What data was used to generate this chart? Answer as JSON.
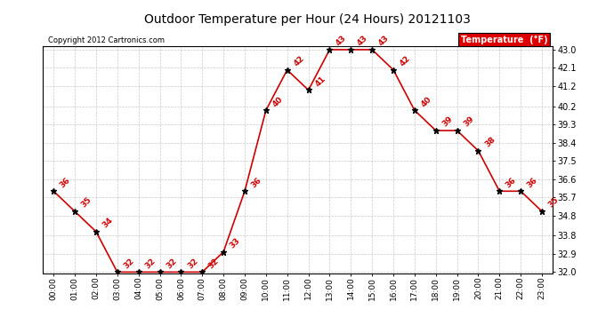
{
  "title": "Outdoor Temperature per Hour (24 Hours) 20121103",
  "copyright_text": "Copyright 2012 Cartronics.com",
  "legend_label": "Temperature  (°F)",
  "hours": [
    "00:00",
    "01:00",
    "02:00",
    "03:00",
    "04:00",
    "05:00",
    "06:00",
    "07:00",
    "08:00",
    "09:00",
    "10:00",
    "11:00",
    "12:00",
    "13:00",
    "14:00",
    "15:00",
    "16:00",
    "17:00",
    "18:00",
    "19:00",
    "20:00",
    "21:00",
    "22:00",
    "23:00"
  ],
  "temps": [
    36,
    35,
    34,
    32,
    32,
    32,
    32,
    32,
    33,
    36,
    40,
    42,
    41,
    43,
    43,
    43,
    42,
    40,
    39,
    39,
    38,
    36,
    36,
    35
  ],
  "x_indices": [
    0,
    1,
    2,
    3,
    4,
    5,
    6,
    7,
    8,
    9,
    10,
    11,
    12,
    13,
    14,
    15,
    16,
    17,
    18,
    19,
    20,
    21,
    22,
    23
  ],
  "ylim_min": 32.0,
  "ylim_max": 43.0,
  "yticks": [
    32.0,
    32.9,
    33.8,
    34.8,
    35.7,
    36.6,
    37.5,
    38.4,
    39.3,
    40.2,
    41.2,
    42.1,
    43.0
  ],
  "line_color": "#cc0000",
  "marker_color": "#000000",
  "label_color": "#cc0000",
  "background_color": "#ffffff",
  "grid_color": "#bbbbbb",
  "title_color": "#000000",
  "legend_bg": "#dd0000",
  "legend_text_color": "#ffffff"
}
